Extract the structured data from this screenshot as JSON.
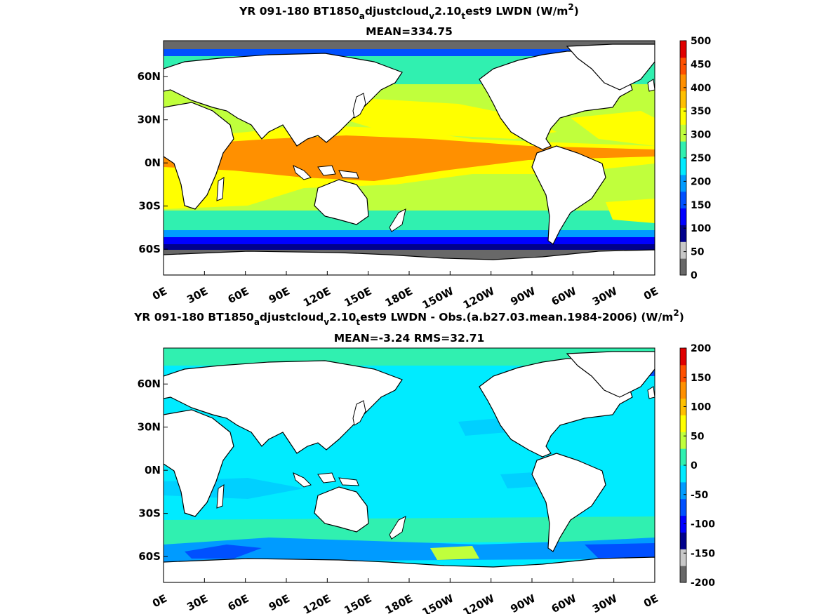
{
  "chart_data": [
    {
      "type": "heatmap",
      "title_parts": [
        "YR 091-180 BT1850",
        "a",
        "djustcloud",
        "v",
        "2.10",
        "t",
        "est9 LWDN (W/m",
        "2",
        ")"
      ],
      "subtitle": "MEAN=334.75",
      "x_ticks": [
        "0E",
        "30E",
        "60E",
        "90E",
        "120E",
        "150E",
        "180E",
        "150W",
        "120W",
        "90W",
        "60W",
        "30W",
        "0E"
      ],
      "y_ticks": [
        "60N",
        "30N",
        "0N",
        "30S",
        "60S"
      ],
      "y_tick_lat": [
        60,
        30,
        0,
        -30,
        -60
      ],
      "lat_range": [
        -78,
        85
      ],
      "lon_range": [
        0,
        360
      ],
      "colorbar": {
        "ticks": [
          "500",
          "450",
          "400",
          "350",
          "300",
          "250",
          "200",
          "150",
          "100",
          "50",
          "0"
        ],
        "values": [
          500,
          450,
          400,
          350,
          300,
          250,
          200,
          150,
          100,
          50,
          0
        ],
        "colors": [
          "#686868",
          "#c8c8c8",
          "#00008c",
          "#0000ff",
          "#0050ff",
          "#009bff",
          "#00ebff",
          "#30f0b0",
          "#c0ff3c",
          "#ffff00",
          "#ffc000",
          "#ff9000",
          "#ff5000",
          "#e00000"
        ]
      }
    },
    {
      "type": "heatmap",
      "title_parts": [
        "YR 091-180 BT1850",
        "a",
        "djustcloud",
        "v",
        "2.10",
        "t",
        "est9 LWDN - Obs.(a.b27.03.mean.1984-2006) (W/m",
        "2",
        ")"
      ],
      "subtitle": "MEAN=-3.24 RMS=32.71",
      "x_ticks": [
        "0E",
        "30E",
        "60E",
        "90E",
        "120E",
        "150E",
        "180E",
        "150W",
        "120W",
        "90W",
        "60W",
        "30W",
        "0E"
      ],
      "y_ticks": [
        "60N",
        "30N",
        "0N",
        "30S",
        "60S"
      ],
      "y_tick_lat": [
        60,
        30,
        0,
        -30,
        -60
      ],
      "lat_range": [
        -78,
        85
      ],
      "lon_range": [
        0,
        360
      ],
      "colorbar": {
        "ticks": [
          "200",
          "150",
          "100",
          "50",
          "0",
          "-50",
          "-100",
          "-150",
          "-200"
        ],
        "values": [
          200,
          150,
          100,
          50,
          0,
          -50,
          -100,
          -150,
          -200
        ],
        "colors": [
          "#686868",
          "#c8c8c8",
          "#00008c",
          "#0000ff",
          "#0050ff",
          "#009bff",
          "#00ebff",
          "#30f0b0",
          "#c0ff3c",
          "#ffff00",
          "#ffc000",
          "#ff9000",
          "#ff5000",
          "#e00000"
        ]
      }
    }
  ]
}
